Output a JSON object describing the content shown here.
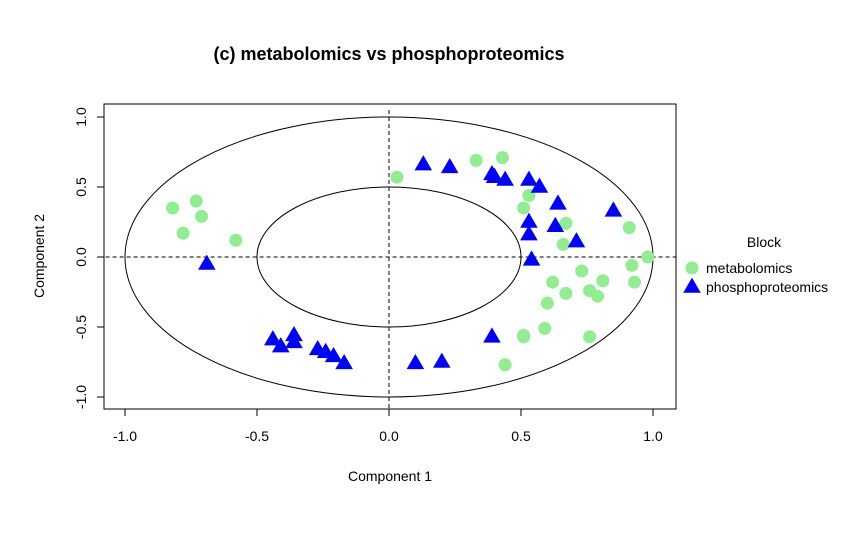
{
  "chart_data": {
    "type": "scatter",
    "title": "(c) metabolomics vs phosphoproteomics",
    "xlabel": "Component  1",
    "ylabel": "Component  2",
    "xlim": [
      -1.1,
      1.1
    ],
    "ylim": [
      -1.1,
      1.05
    ],
    "x_ticks": [
      "-1.0",
      "-0.5",
      "0.0",
      "0.5",
      "1.0"
    ],
    "y_ticks": [
      "-1.0",
      "-0.5",
      "0.0",
      "0.5",
      "1.0"
    ],
    "circles_radius": [
      1.0,
      0.5
    ],
    "reference_lines": {
      "x": 0,
      "y": 0,
      "style": "dashed"
    },
    "legend": {
      "title": "Block",
      "position": "right"
    },
    "series": [
      {
        "name": "metabolomics",
        "marker": "circle",
        "color": "#90EE90",
        "points": [
          [
            -0.82,
            0.35
          ],
          [
            -0.73,
            0.4
          ],
          [
            -0.71,
            0.29
          ],
          [
            -0.78,
            0.17
          ],
          [
            -0.58,
            0.12
          ],
          [
            0.03,
            0.57
          ],
          [
            0.33,
            0.69
          ],
          [
            0.43,
            0.71
          ],
          [
            0.53,
            0.44
          ],
          [
            0.51,
            0.35
          ],
          [
            0.67,
            0.24
          ],
          [
            0.66,
            0.09
          ],
          [
            0.91,
            0.21
          ],
          [
            0.98,
            0.0
          ],
          [
            0.92,
            -0.06
          ],
          [
            0.73,
            -0.1
          ],
          [
            0.93,
            -0.18
          ],
          [
            0.81,
            -0.17
          ],
          [
            0.76,
            -0.24
          ],
          [
            0.79,
            -0.28
          ],
          [
            0.67,
            -0.26
          ],
          [
            0.62,
            -0.18
          ],
          [
            0.6,
            -0.33
          ],
          [
            0.59,
            -0.51
          ],
          [
            0.51,
            -0.56
          ],
          [
            0.51,
            -0.57
          ],
          [
            0.76,
            -0.57
          ],
          [
            0.44,
            -0.77
          ]
        ]
      },
      {
        "name": "phosphoproteomics",
        "marker": "triangle",
        "color": "#0000FF",
        "points": [
          [
            0.13,
            0.66
          ],
          [
            0.23,
            0.64
          ],
          [
            0.39,
            0.59
          ],
          [
            0.4,
            0.57
          ],
          [
            0.44,
            0.55
          ],
          [
            0.53,
            0.55
          ],
          [
            0.57,
            0.5
          ],
          [
            0.64,
            0.38
          ],
          [
            0.85,
            0.33
          ],
          [
            0.53,
            0.25
          ],
          [
            0.63,
            0.22
          ],
          [
            0.53,
            0.16
          ],
          [
            0.71,
            0.11
          ],
          [
            0.54,
            -0.02
          ],
          [
            -0.69,
            -0.05
          ],
          [
            -0.44,
            -0.59
          ],
          [
            -0.41,
            -0.64
          ],
          [
            -0.36,
            -0.56
          ],
          [
            -0.36,
            -0.61
          ],
          [
            -0.27,
            -0.66
          ],
          [
            -0.24,
            -0.68
          ],
          [
            -0.21,
            -0.71
          ],
          [
            -0.17,
            -0.76
          ],
          [
            0.1,
            -0.76
          ],
          [
            0.2,
            -0.75
          ],
          [
            0.39,
            -0.57
          ]
        ]
      }
    ]
  }
}
